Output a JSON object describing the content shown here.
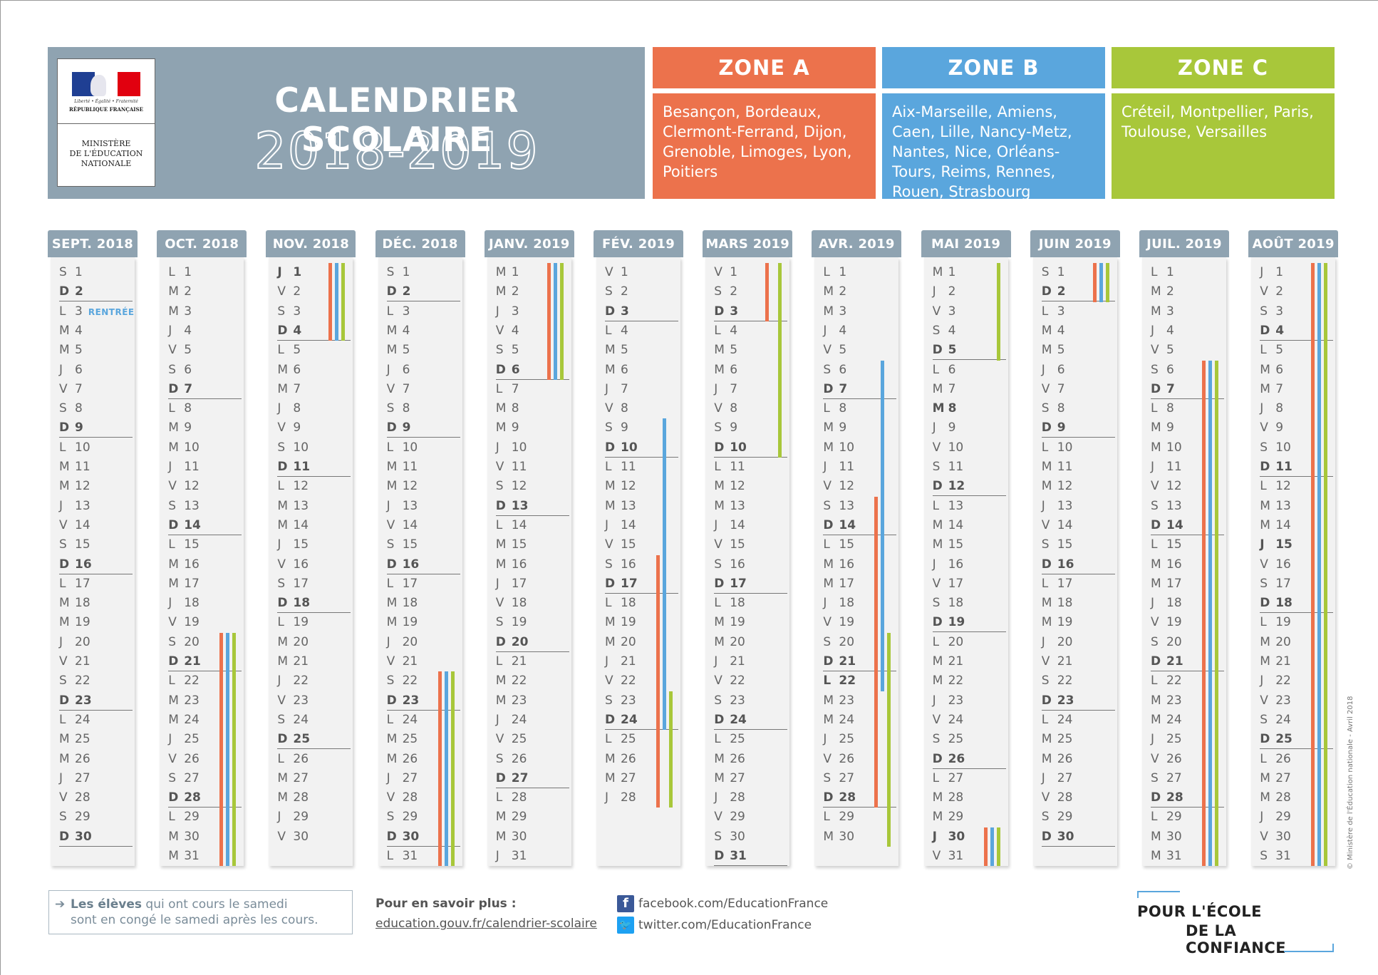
{
  "header": {
    "motto": "Liberté • Égalité • Fraternité",
    "republique": "RÉPUBLIQUE FRANÇAISE",
    "ministere": "MINISTÈRE\nDE L'ÉDUCATION\nNATIONALE",
    "title": "CALENDRIER SCOLAIRE",
    "years": "2018-2019"
  },
  "zones": {
    "a": {
      "title": "ZONE A",
      "cities": "Besançon, Bordeaux, Clermont-Ferrand, Dijon, Grenoble, Limoges, Lyon, Poitiers",
      "color": "#ec724c"
    },
    "b": {
      "title": "ZONE B",
      "cities": "Aix-Marseille, Amiens, Caen, Lille, Nancy-Metz, Nantes, Nice, Orléans-Tours, Reims, Rennes, Rouen, Strasbourg",
      "color": "#5aa6dd"
    },
    "c": {
      "title": "ZONE C",
      "cities": "Créteil, Montpellier, Paris, Toulouse, Versailles",
      "color": "#a8c73a"
    }
  },
  "months": [
    {
      "label": "SEPT. 2018",
      "days": 30,
      "first": "S",
      "bold": [
        2,
        9,
        16,
        23,
        30
      ],
      "rentree_day": 3,
      "rentree_label": "RENTRÉE",
      "holidays": []
    },
    {
      "label": "OCT. 2018",
      "days": 31,
      "first": "L",
      "bold": [
        7,
        14,
        21,
        28
      ],
      "holidays": [
        {
          "zones": "abc",
          "from": 20,
          "to": 31
        }
      ]
    },
    {
      "label": "NOV. 2018",
      "days": 30,
      "first": "J",
      "bold": [
        1,
        4,
        11,
        18,
        25
      ],
      "holidays": [
        {
          "zones": "abc",
          "from": 1,
          "to": 4
        }
      ]
    },
    {
      "label": "DÉC. 2018",
      "days": 31,
      "first": "S",
      "bold": [
        2,
        9,
        16,
        23,
        30
      ],
      "holidays": [
        {
          "zones": "abc",
          "from": 22,
          "to": 31
        }
      ]
    },
    {
      "label": "JANV. 2019",
      "days": 31,
      "first": "M",
      "bold": [
        6,
        13,
        20,
        27
      ],
      "holidays": [
        {
          "zones": "abc",
          "from": 1,
          "to": 6
        }
      ]
    },
    {
      "label": "FÉV. 2019",
      "days": 28,
      "first": "V",
      "bold": [
        3,
        10,
        17,
        24
      ],
      "holidays": [
        {
          "zones": "b",
          "from": 9,
          "to": 24
        },
        {
          "zones": "a",
          "from": 16,
          "to": 28
        },
        {
          "zones": "c",
          "from": 23,
          "to": 28
        }
      ]
    },
    {
      "label": "MARS 2019",
      "days": 31,
      "first": "V",
      "bold": [
        3,
        10,
        17,
        24,
        31
      ],
      "holidays": [
        {
          "zones": "a",
          "from": 1,
          "to": 3
        },
        {
          "zones": "c",
          "from": 1,
          "to": 10
        }
      ]
    },
    {
      "label": "AVR. 2019",
      "days": 30,
      "first": "L",
      "bold": [
        7,
        14,
        21,
        22,
        28
      ],
      "holidays": [
        {
          "zones": "b",
          "from": 6,
          "to": 22
        },
        {
          "zones": "a",
          "from": 13,
          "to": 28
        },
        {
          "zones": "c",
          "from": 20,
          "to": 30
        }
      ]
    },
    {
      "label": "MAI 2019",
      "days": 31,
      "first": "M",
      "bold": [
        5,
        8,
        12,
        19,
        26,
        30
      ],
      "holidays": [
        {
          "zones": "c",
          "from": 1,
          "to": 5
        },
        {
          "zones": "abc",
          "from": 30,
          "to": 31
        }
      ]
    },
    {
      "label": "JUIN 2019",
      "days": 30,
      "first": "S",
      "bold": [
        2,
        9,
        16,
        23,
        30
      ],
      "holidays": [
        {
          "zones": "abc",
          "from": 1,
          "to": 2
        }
      ]
    },
    {
      "label": "JUIL. 2019",
      "days": 31,
      "first": "L",
      "bold": [
        7,
        14,
        21,
        28
      ],
      "holidays": [
        {
          "zones": "abc",
          "from": 6,
          "to": 31
        }
      ]
    },
    {
      "label": "AOÛT 2019",
      "days": 31,
      "first": "J",
      "bold": [
        4,
        11,
        15,
        18,
        25
      ],
      "holidays": [
        {
          "zones": "abc",
          "from": 1,
          "to": 31
        }
      ]
    }
  ],
  "footer": {
    "note_bold": "Les élèves",
    "note_rest": " qui ont cours le samedi",
    "note_line2": "sont en congé le samedi après les cours.",
    "more_title": "Pour en savoir plus :",
    "more_link": "education.gouv.fr/calendrier-scolaire",
    "facebook": "facebook.com/EducationFrance",
    "twitter": "twitter.com/EducationFrance",
    "slogan1": "POUR L'ÉCOLE",
    "slogan2": "DE LA CONFIANCE",
    "copyright": "© Ministère de l'Éducation nationale - Avril 2018"
  }
}
